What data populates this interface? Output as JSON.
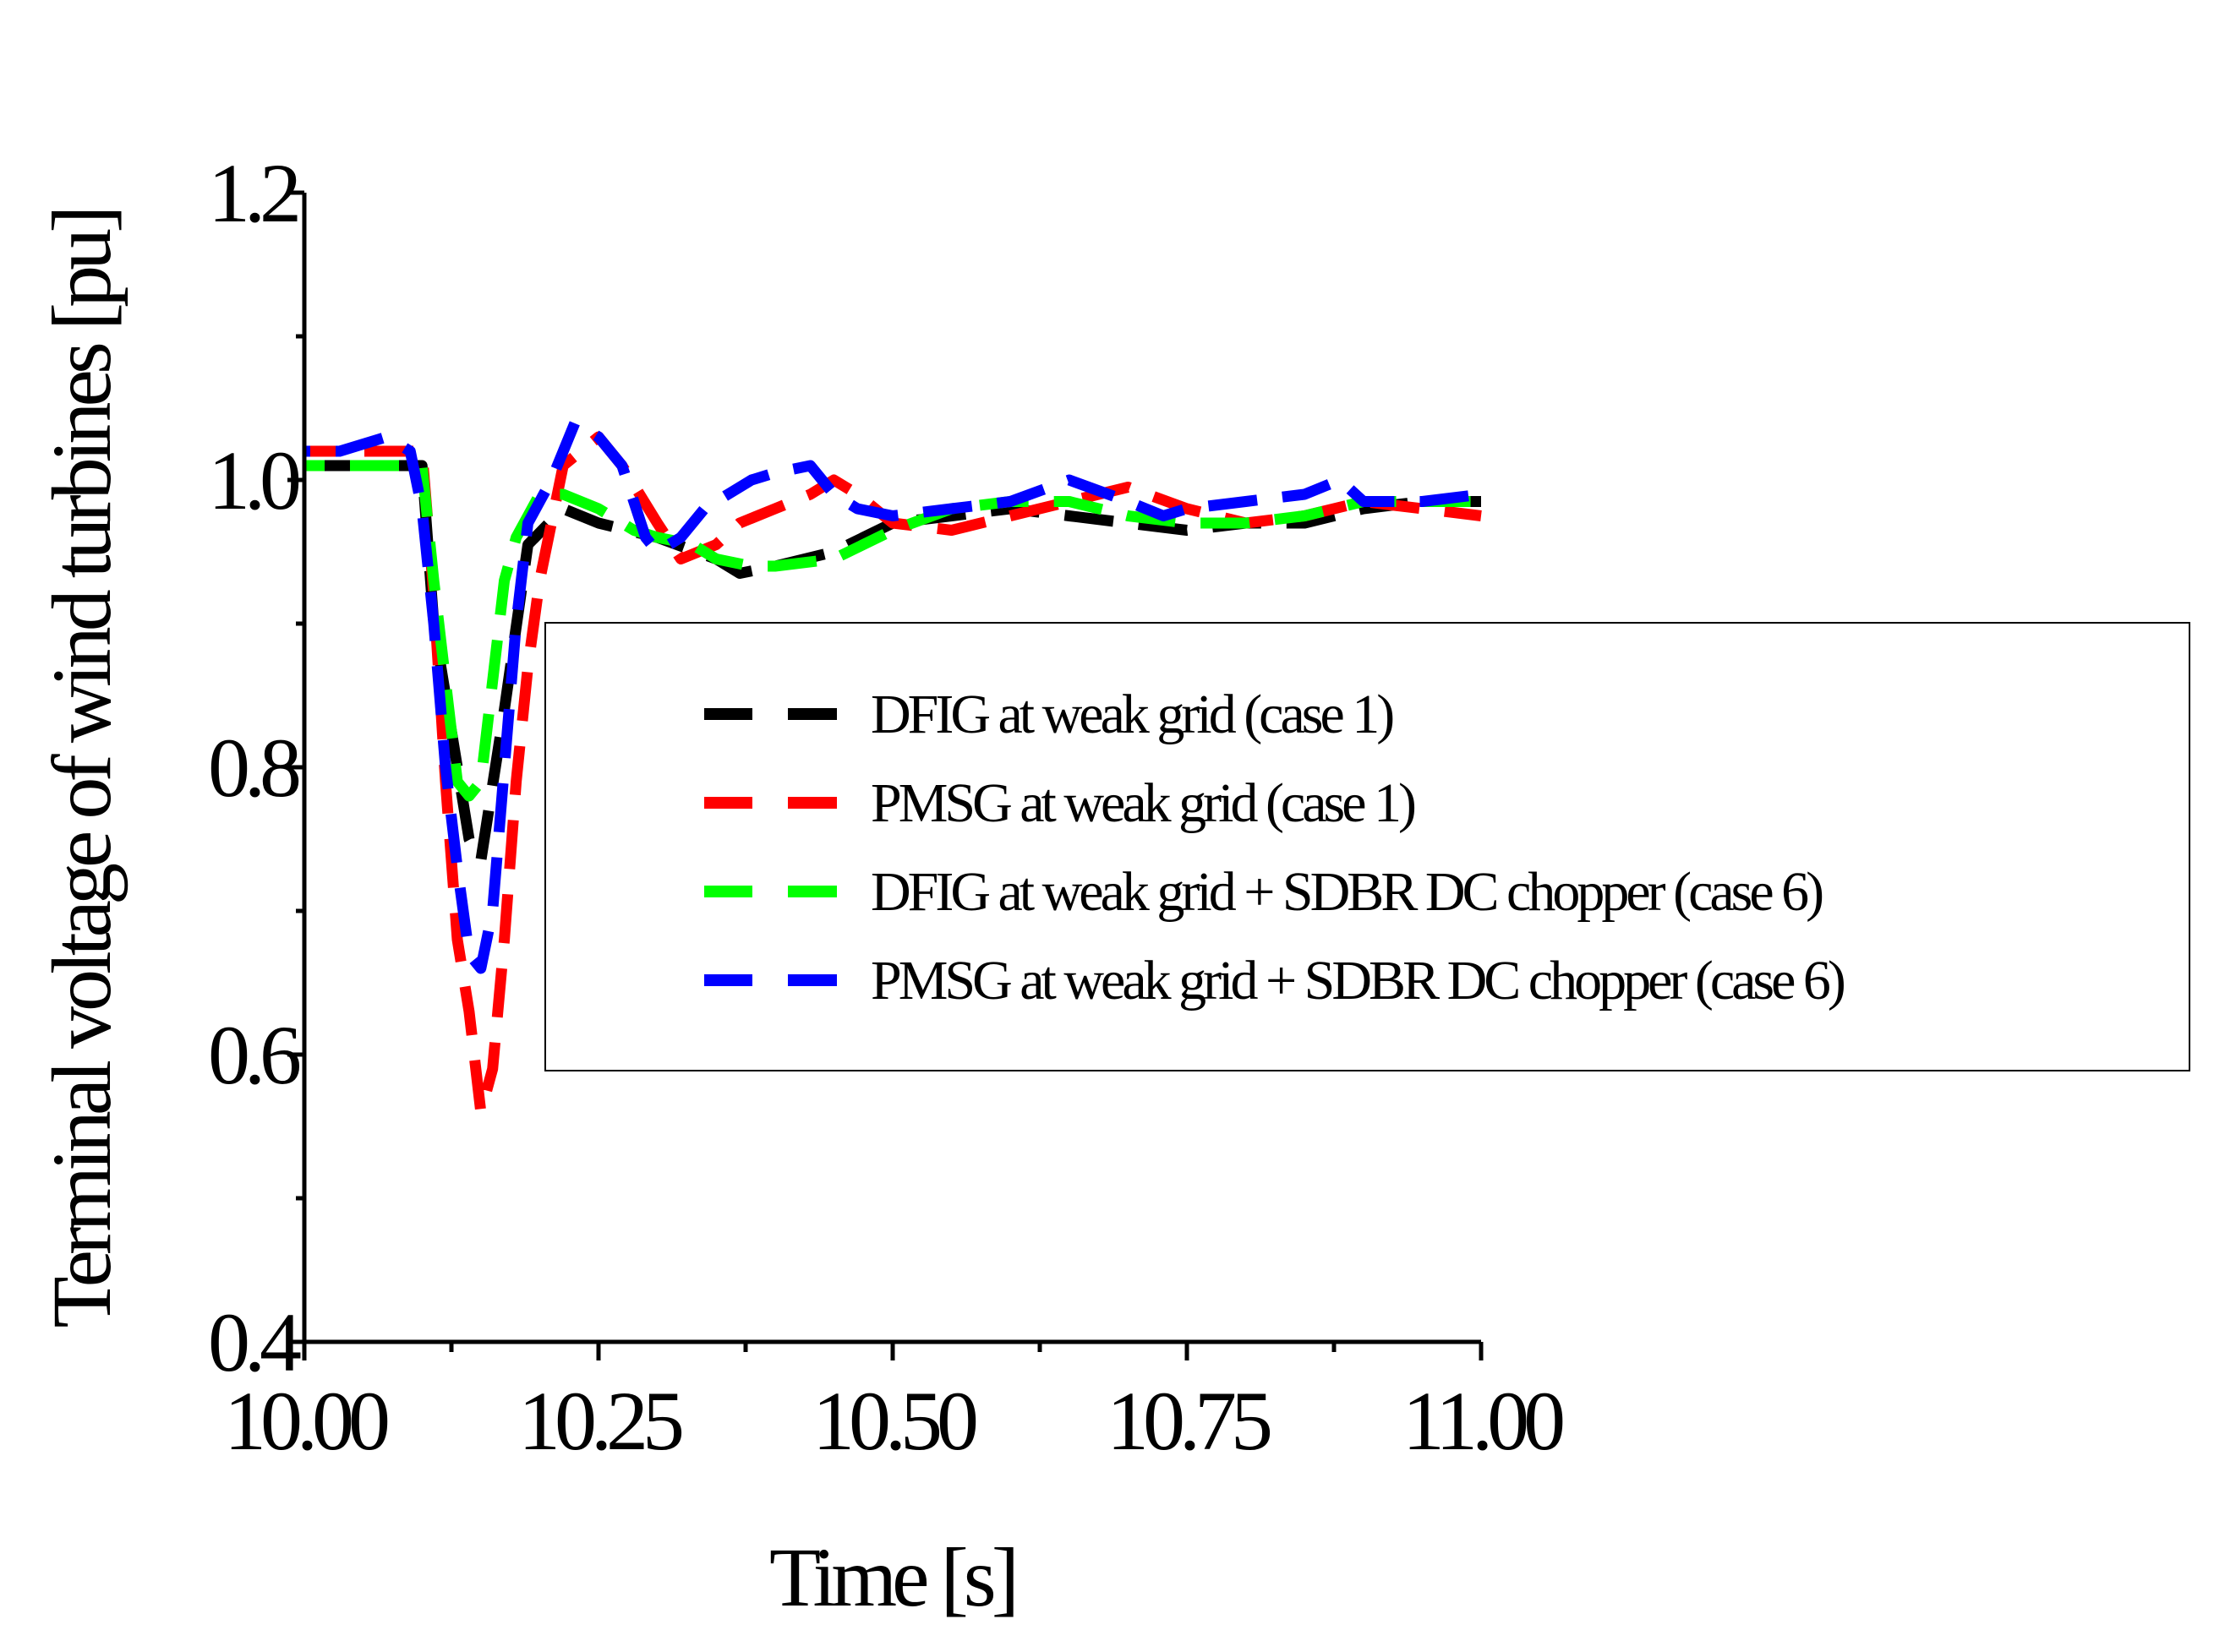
{
  "chart_data": {
    "type": "line",
    "title": "",
    "xlabel": "Time [s]",
    "ylabel": "Terminal voltage of wind turbines [pu]",
    "xlim": [
      10.0,
      11.0
    ],
    "ylim": [
      0.4,
      1.2
    ],
    "x_ticks": [
      10.0,
      10.25,
      10.5,
      10.75,
      11.0
    ],
    "x_tick_labels": [
      "10.00",
      "10.25",
      "10.50",
      "10.75",
      "11.00"
    ],
    "x_minor_ticks": [
      10.125,
      10.375,
      10.625,
      10.875
    ],
    "y_ticks": [
      0.4,
      0.6,
      0.8,
      1.0,
      1.2
    ],
    "y_tick_labels": [
      "0.4",
      "0.6",
      "0.8",
      "1.0",
      "1.2"
    ],
    "y_minor_ticks": [
      0.5,
      0.7,
      0.9,
      1.1
    ],
    "grid": false,
    "legend_position": "center-right",
    "series": [
      {
        "name": "DFIG at weak grid (case 1)",
        "color": "#000000",
        "x": [
          10.0,
          10.1,
          10.11,
          10.13,
          10.14,
          10.15,
          10.17,
          10.19,
          10.22,
          10.25,
          10.3,
          10.35,
          10.37,
          10.4,
          10.45,
          10.5,
          10.55,
          10.6,
          10.65,
          10.7,
          10.75,
          10.8,
          10.85,
          10.9,
          10.95,
          11.0
        ],
        "y": [
          1.01,
          1.01,
          0.9,
          0.8,
          0.75,
          0.735,
          0.84,
          0.955,
          0.98,
          0.97,
          0.96,
          0.945,
          0.935,
          0.94,
          0.95,
          0.97,
          0.975,
          0.98,
          0.975,
          0.97,
          0.965,
          0.97,
          0.97,
          0.98,
          0.985,
          0.985
        ]
      },
      {
        "name": "PMSG at weak grid (case 1)",
        "color": "#ff0000",
        "x": [
          10.0,
          10.05,
          10.08,
          10.1,
          10.11,
          10.12,
          10.13,
          10.14,
          10.15,
          10.16,
          10.17,
          10.18,
          10.19,
          10.2,
          10.22,
          10.25,
          10.27,
          10.3,
          10.32,
          10.35,
          10.37,
          10.4,
          10.43,
          10.45,
          10.47,
          10.5,
          10.55,
          10.6,
          10.65,
          10.7,
          10.75,
          10.8,
          10.85,
          10.9,
          10.95,
          11.0
        ],
        "y": [
          1.02,
          1.02,
          1.02,
          1.02,
          0.92,
          0.79,
          0.68,
          0.63,
          0.56,
          0.59,
          0.68,
          0.79,
          0.87,
          0.93,
          1.01,
          1.03,
          1.01,
          0.97,
          0.945,
          0.955,
          0.97,
          0.98,
          0.99,
          1.0,
          0.99,
          0.97,
          0.965,
          0.975,
          0.985,
          0.995,
          0.98,
          0.97,
          0.975,
          0.985,
          0.98,
          0.975
        ]
      },
      {
        "name": "DFIG at weak grid + SDBR DC chopper (case 6)",
        "color": "#00ff00",
        "x": [
          10.0,
          10.1,
          10.11,
          10.12,
          10.13,
          10.14,
          10.15,
          10.16,
          10.17,
          10.18,
          10.2,
          10.22,
          10.25,
          10.28,
          10.3,
          10.33,
          10.35,
          10.38,
          10.4,
          10.45,
          10.5,
          10.55,
          10.6,
          10.65,
          10.7,
          10.75,
          10.8,
          10.85,
          10.9,
          10.95,
          11.0
        ],
        "y": [
          1.01,
          1.01,
          0.93,
          0.86,
          0.79,
          0.78,
          0.79,
          0.86,
          0.93,
          0.96,
          0.99,
          0.99,
          0.98,
          0.965,
          0.96,
          0.955,
          0.945,
          0.94,
          0.94,
          0.945,
          0.965,
          0.98,
          0.985,
          0.985,
          0.975,
          0.97,
          0.97,
          0.975,
          0.985,
          0.985,
          0.985
        ]
      },
      {
        "name": "PMSG at weak grid + SDBR DC chopper (case 6)",
        "color": "#0000ff",
        "x": [
          10.0,
          10.03,
          10.07,
          10.09,
          10.1,
          10.11,
          10.12,
          10.13,
          10.14,
          10.15,
          10.16,
          10.17,
          10.18,
          10.19,
          10.21,
          10.23,
          10.25,
          10.27,
          10.29,
          10.3,
          10.32,
          10.34,
          10.36,
          10.38,
          10.4,
          10.43,
          10.45,
          10.47,
          10.5,
          10.55,
          10.6,
          10.65,
          10.7,
          10.73,
          10.75,
          10.8,
          10.85,
          10.88,
          10.9,
          10.95,
          11.0
        ],
        "y": [
          1.02,
          1.02,
          1.03,
          1.02,
          0.98,
          0.9,
          0.8,
          0.73,
          0.67,
          0.66,
          0.7,
          0.8,
          0.9,
          0.97,
          1.0,
          1.04,
          1.03,
          1.01,
          0.96,
          0.95,
          0.96,
          0.98,
          0.99,
          1.0,
          1.005,
          1.01,
          0.99,
          0.98,
          0.975,
          0.98,
          0.985,
          1.0,
          0.985,
          0.975,
          0.98,
          0.985,
          0.99,
          1.0,
          0.985,
          0.985,
          0.99
        ]
      }
    ]
  }
}
